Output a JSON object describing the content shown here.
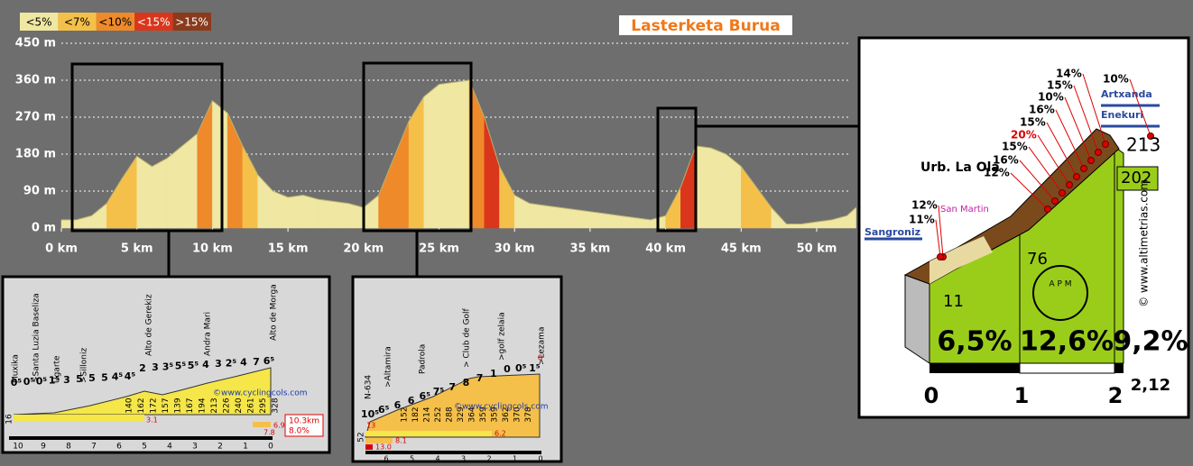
{
  "chart_data": {
    "type": "area",
    "title": "Lasterketa Burua",
    "legend": [
      {
        "label": "<5%",
        "color": "#efe7a2"
      },
      {
        "label": "<7%",
        "color": "#f5c04a"
      },
      {
        "label": "<10%",
        "color": "#ef8a2a"
      },
      {
        "label": "<15%",
        "color": "#d9361c"
      },
      {
        "label": ">15%",
        "color": "#8a3b1c"
      }
    ],
    "x": [
      0,
      1,
      2,
      3,
      4,
      5,
      6,
      7,
      8,
      9,
      10,
      11,
      12,
      13,
      14,
      15,
      16,
      17,
      18,
      19,
      20,
      21,
      22,
      23,
      24,
      25,
      26,
      27,
      28,
      29,
      30,
      31,
      32,
      33,
      34,
      35,
      36,
      37,
      38,
      39,
      40,
      41,
      42,
      43,
      44,
      45,
      46,
      47,
      48,
      49,
      50,
      51,
      52,
      52.6
    ],
    "values": [
      20,
      20,
      30,
      60,
      120,
      175,
      150,
      170,
      200,
      230,
      310,
      280,
      200,
      130,
      90,
      75,
      80,
      70,
      65,
      60,
      50,
      80,
      170,
      260,
      320,
      350,
      355,
      360,
      270,
      150,
      80,
      60,
      55,
      50,
      45,
      40,
      35,
      30,
      25,
      20,
      30,
      100,
      200,
      195,
      180,
      150,
      100,
      50,
      10,
      10,
      15,
      20,
      30,
      50
    ],
    "colors": [
      "#efe7a2",
      "#efe7a2",
      "#efe7a2",
      "#f5c04a",
      "#f5c04a",
      "#efe7a2",
      "#efe7a2",
      "#efe7a2",
      "#efe7a2",
      "#ef8a2a",
      "#efe7a2",
      "#ef8a2a",
      "#f5c04a",
      "#efe7a2",
      "#efe7a2",
      "#efe7a2",
      "#efe7a2",
      "#efe7a2",
      "#efe7a2",
      "#efe7a2",
      "#efe7a2",
      "#ef8a2a",
      "#ef8a2a",
      "#f5c04a",
      "#efe7a2",
      "#efe7a2",
      "#efe7a2",
      "#ef8a2a",
      "#d9361c",
      "#f5c04a",
      "#efe7a2",
      "#efe7a2",
      "#efe7a2",
      "#efe7a2",
      "#efe7a2",
      "#efe7a2",
      "#efe7a2",
      "#efe7a2",
      "#efe7a2",
      "#efe7a2",
      "#f5c04a",
      "#d9361c",
      "#efe7a2",
      "#efe7a2",
      "#efe7a2",
      "#f5c04a",
      "#f5c04a",
      "#efe7a2",
      "#efe7a2",
      "#efe7a2",
      "#efe7a2",
      "#efe7a2",
      "#efe7a2"
    ],
    "xlim": [
      0,
      52.6
    ],
    "ylim": [
      0,
      450
    ],
    "xticks": [
      {
        "value": 0,
        "label": "0 km"
      },
      {
        "value": 5,
        "label": "5 km"
      },
      {
        "value": 10,
        "label": "10 km"
      },
      {
        "value": 15,
        "label": "15 km"
      },
      {
        "value": 20,
        "label": "20 km"
      },
      {
        "value": 25,
        "label": "25 km"
      },
      {
        "value": 30,
        "label": "30 km"
      },
      {
        "value": 35,
        "label": "35 km"
      },
      {
        "value": 40,
        "label": "40 km"
      },
      {
        "value": 45,
        "label": "45 km"
      },
      {
        "value": 50,
        "label": "50 km"
      }
    ],
    "yticks": [
      {
        "value": 0,
        "label": "0 m"
      },
      {
        "value": 90,
        "label": "90 m"
      },
      {
        "value": 180,
        "label": "180 m"
      },
      {
        "value": 270,
        "label": "270 m"
      },
      {
        "value": 360,
        "label": "360 m"
      },
      {
        "value": 450,
        "label": "450 m"
      }
    ],
    "grid": true
  },
  "insets": {
    "morga": {
      "names": [
        "Muxika",
        ">Santa Luzia Baseliza",
        "Ugarte",
        ">Silloniz",
        "Alto de Gerekiz",
        "Andra Mari",
        "Alto de Morga"
      ],
      "gradients": [
        "0⁵",
        "0⁵",
        "0⁵",
        "1⁵",
        "3",
        "5",
        "5",
        "5",
        "4⁵",
        "4⁵",
        "2",
        "3",
        "3⁵",
        "5⁵",
        "5⁵",
        "4",
        "3",
        "2⁵",
        "4",
        "7",
        "6⁵"
      ],
      "heights": [
        140,
        162,
        172,
        157,
        139,
        167,
        194,
        213,
        226,
        240,
        261,
        295,
        328
      ],
      "start": 16,
      "credit": "©www.cyclingcols.com",
      "marks": [
        "3.1",
        "6.9",
        "7.8"
      ],
      "summary": [
        "10.3km",
        "8.0%"
      ],
      "km": [
        10,
        9,
        8,
        7,
        6,
        5,
        4,
        3,
        2,
        1,
        0
      ]
    },
    "lezama": {
      "names": [
        "N-634",
        ">Altamira",
        "Padrola",
        "> Club de Golf",
        ">golf zelaia",
        ">Lezama"
      ],
      "gradients": [
        "10⁵",
        "6⁵",
        "6",
        "6",
        "6⁵",
        "7⁵",
        "7",
        "8",
        "7",
        "1",
        "0",
        "0⁵",
        "1⁵"
      ],
      "heights": [
        152,
        182,
        214,
        252,
        288,
        329,
        364,
        359,
        359,
        362,
        370,
        378
      ],
      "start": 52,
      "max_marks": [
        "13",
        "8"
      ],
      "credit": "©www.cyclingcols.com",
      "marks": [
        "6.2",
        "8.1",
        "13.0"
      ],
      "km": [
        6,
        5,
        4,
        3,
        2,
        1,
        0
      ]
    },
    "enekuri": {
      "places": [
        "Urb. La Ola",
        "San Martin",
        "Sangroniz",
        "Artxanda",
        "Enekuri"
      ],
      "percents": [
        "12%",
        "11%",
        "12%",
        "16%",
        "15%",
        "20%",
        "15%",
        "16%",
        "10%",
        "15%",
        "14%",
        "10%"
      ],
      "heights": [
        "11",
        "76",
        "202",
        "213"
      ],
      "sections": [
        "6,5%",
        "12,6%",
        "9,2%"
      ],
      "km": [
        "0",
        "1",
        "2",
        "2,12"
      ],
      "credit": "© www.altimetrias.com",
      "logo": "A P M"
    }
  }
}
